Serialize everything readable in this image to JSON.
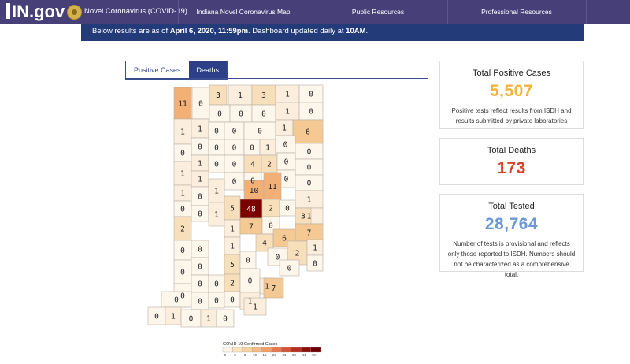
{
  "nav": {
    "logo": "IN.gov",
    "site_title": "Novel Coronavirus (COVID-19)",
    "links": [
      "Indiana Novel Coronavirus Map",
      "Public Resources",
      "Professional Resources"
    ]
  },
  "banner": {
    "prefix": "Below results are as of ",
    "date": "April 6, 2020, 11:59pm",
    "middle": ". Dashboard updated daily at ",
    "time": "10AM",
    "suffix": "."
  },
  "tabs": [
    "Positive Cases",
    "Deaths"
  ],
  "active_tab": "Deaths",
  "map": {
    "legend_title": "COVID-19 Confirmed Cases",
    "legend_ticks": [
      "0",
      "2",
      "8",
      "10",
      "15",
      "23",
      "31",
      "39",
      "44",
      "40+"
    ],
    "legend_colors": [
      "#fdf5e6",
      "#fbe3bf",
      "#f9d2a3",
      "#f6bb82",
      "#f2a067",
      "#e8794f",
      "#d65338",
      "#b8301f",
      "#8c0f0a",
      "#6b0000"
    ],
    "county_values": [
      "11",
      "0",
      "3",
      "1",
      "3",
      "1",
      "0",
      "0",
      "0",
      "0",
      "1",
      "0",
      "1",
      "1",
      "0",
      "0",
      "0",
      "1",
      "6",
      "0",
      "0",
      "0",
      "0",
      "1",
      "0",
      "0",
      "0",
      "1",
      "0",
      "0",
      "4",
      "2",
      "0",
      "0",
      "1",
      "1",
      "0",
      "0",
      "0",
      "0",
      "1",
      "0",
      "1",
      "10",
      "11",
      "1",
      "0",
      "0",
      "1",
      "5",
      "48",
      "2",
      "0",
      "1",
      "2",
      "1",
      "7",
      "0",
      "3",
      "7",
      "0",
      "0",
      "1",
      "4",
      "6",
      "2",
      "1",
      "0",
      "0",
      "5",
      "0",
      "0",
      "0",
      "0",
      "0",
      "0",
      "0",
      "2",
      "0",
      "1",
      "7",
      "0",
      "0",
      "0",
      "0",
      "1",
      "1",
      "0",
      "1",
      "0",
      "1",
      "0"
    ]
  },
  "cards": {
    "positive": {
      "title": "Total Positive Cases",
      "value": "5,507",
      "note": "Positive tests reflect results from ISDH and results submitted by private laboratories",
      "color": "#f3b23c"
    },
    "deaths": {
      "title": "Total Deaths",
      "value": "173",
      "color": "#d5452a"
    },
    "tested": {
      "title": "Total Tested",
      "value": "28,764",
      "note": "Number of tests is provisional and reflects only those reported to ISDH. Numbers should not be characterized as a comprehensive total.",
      "color": "#6c98d6"
    }
  }
}
